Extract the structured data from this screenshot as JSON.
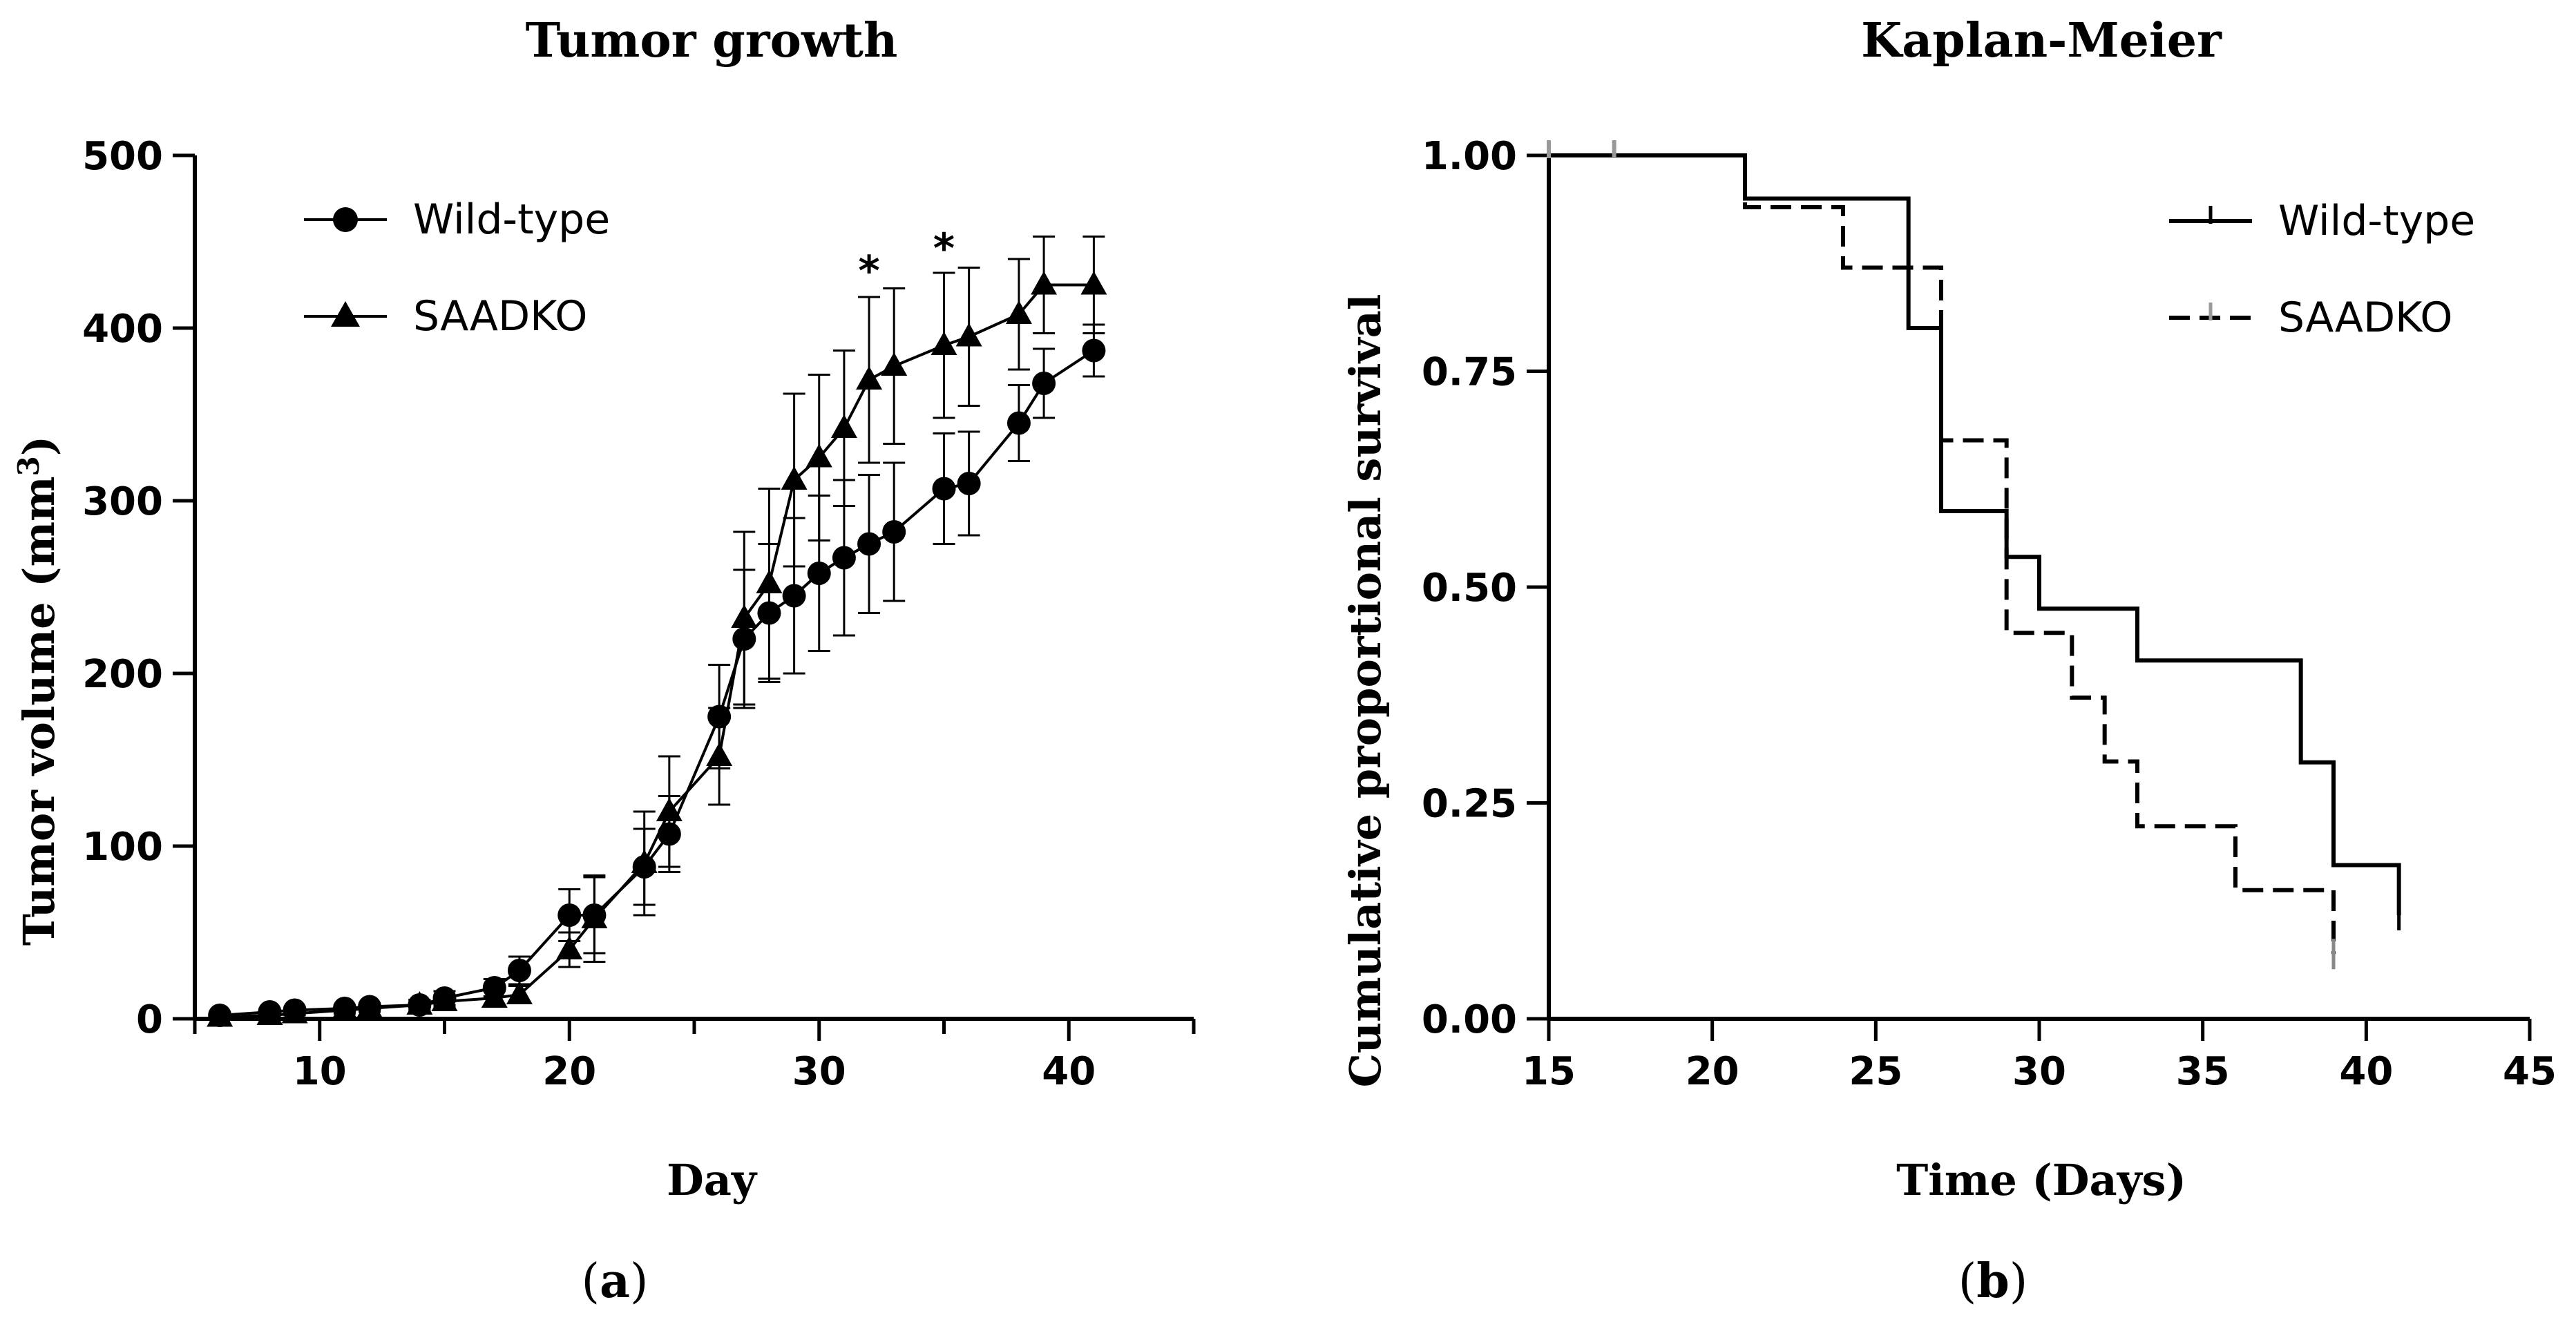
{
  "chart_data": [
    {
      "type": "line",
      "title": "Tumor growth",
      "xlabel": "Day",
      "ylabel": "Tumor volume (mm",
      "ylabel_sup": "3",
      "ylabel_close": ")",
      "xlim": [
        5,
        45
      ],
      "ylim": [
        0,
        500
      ],
      "xticks": [
        10,
        20,
        30,
        40
      ],
      "yticks": [
        0,
        100,
        200,
        300,
        400,
        500
      ],
      "tick_labels_x": [
        "10",
        "20",
        "30",
        "40"
      ],
      "tick_labels_y": [
        "0",
        "100",
        "200",
        "300",
        "400",
        "500"
      ],
      "legend_position": "top-left",
      "panel_label": "a",
      "series": [
        {
          "name": "Wild-type",
          "marker": "circle",
          "x": [
            6,
            8,
            9,
            11,
            12,
            14,
            15,
            17,
            18,
            20,
            21,
            23,
            24,
            26,
            27,
            28,
            29,
            30,
            31,
            32,
            33,
            35,
            36,
            38,
            39,
            41
          ],
          "y": [
            2,
            4,
            5,
            6,
            7,
            8,
            12,
            18,
            28,
            60,
            60,
            88,
            107,
            175,
            220,
            235,
            245,
            258,
            267,
            275,
            282,
            307,
            310,
            345,
            368,
            387
          ],
          "err": [
            1,
            2,
            2,
            2,
            2,
            3,
            4,
            5,
            8,
            15,
            22,
            22,
            22,
            30,
            40,
            40,
            45,
            45,
            45,
            40,
            40,
            32,
            30,
            22,
            20,
            15
          ]
        },
        {
          "name": "SAADKO",
          "marker": "triangle",
          "x": [
            6,
            8,
            9,
            11,
            12,
            14,
            15,
            17,
            18,
            20,
            21,
            23,
            24,
            26,
            27,
            28,
            29,
            30,
            31,
            32,
            33,
            35,
            36,
            38,
            39,
            41
          ],
          "y": [
            1,
            2,
            3,
            5,
            6,
            8,
            10,
            12,
            14,
            40,
            58,
            90,
            120,
            152,
            232,
            252,
            312,
            325,
            342,
            370,
            378,
            390,
            395,
            408,
            425,
            425
          ],
          "err": [
            1,
            1,
            1,
            2,
            2,
            3,
            3,
            4,
            5,
            10,
            25,
            30,
            32,
            28,
            50,
            55,
            50,
            48,
            45,
            48,
            45,
            42,
            40,
            32,
            28,
            28
          ]
        }
      ],
      "annotations": [
        {
          "text": "*",
          "x": 32,
          "y": 425
        },
        {
          "text": "*",
          "x": 35,
          "y": 438
        }
      ]
    },
    {
      "type": "line",
      "subtype": "step",
      "title": "Kaplan-Meier",
      "xlabel": "Time (Days)",
      "ylabel": "Cumulative proportional survival",
      "xlim": [
        15,
        45
      ],
      "ylim": [
        0,
        1
      ],
      "xticks": [
        15,
        20,
        25,
        30,
        35,
        40,
        45
      ],
      "yticks": [
        0,
        0.25,
        0.5,
        0.75,
        1.0
      ],
      "tick_labels_x": [
        "15",
        "20",
        "25",
        "30",
        "35",
        "40",
        "45"
      ],
      "tick_labels_y": [
        "0.00",
        "0.25",
        "0.50",
        "0.75",
        "1.00"
      ],
      "legend_position": "top-right",
      "panel_label": "b",
      "series": [
        {
          "name": "Wild-type",
          "style": "solid",
          "x": [
            15,
            21,
            26,
            27,
            29,
            30,
            33,
            38,
            39,
            41
          ],
          "y": [
            1.0,
            0.95,
            0.8,
            0.588,
            0.535,
            0.475,
            0.415,
            0.297,
            0.178,
            0.12
          ]
        },
        {
          "name": "SAADKO",
          "style": "dashed",
          "x": [
            15,
            21,
            24,
            27,
            29,
            31,
            32,
            33,
            36,
            39
          ],
          "y": [
            1.0,
            0.94,
            0.87,
            0.67,
            0.447,
            0.372,
            0.298,
            0.223,
            0.149,
            0.075
          ]
        }
      ],
      "censored_ticks_x": [
        15,
        17
      ]
    }
  ]
}
